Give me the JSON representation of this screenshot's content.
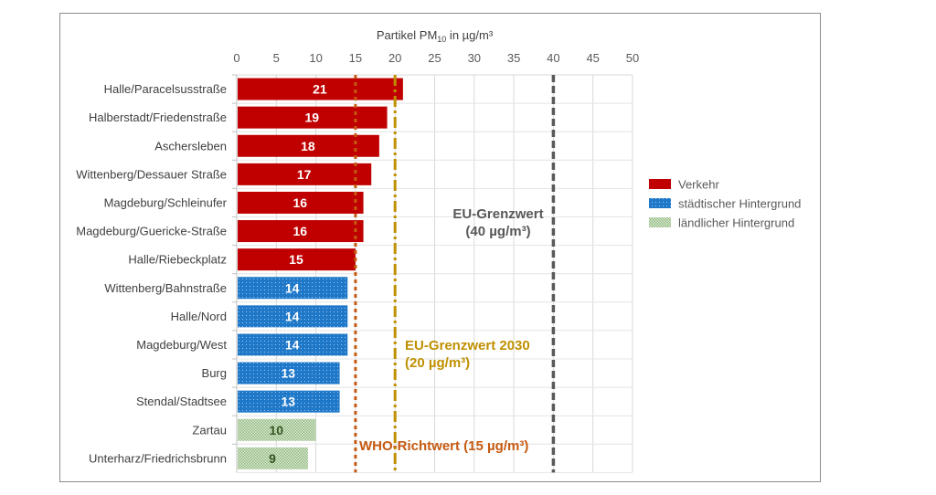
{
  "chart_data": {
    "type": "bar",
    "orientation": "horizontal",
    "title_parts": [
      "Partikel PM",
      "10",
      " in µg/m³"
    ],
    "xlim": [
      0,
      50
    ],
    "xticks": [
      0,
      5,
      10,
      15,
      20,
      25,
      30,
      35,
      40,
      45,
      50
    ],
    "grid": true,
    "legend_position": "right",
    "categories": [
      "Halle/Paracelsusstraße",
      "Halberstadt/Friedenstraße",
      "Aschersleben",
      "Wittenberg/Dessauer Straße",
      "Magdeburg/Schleinufer",
      "Magdeburg/Guericke-Straße",
      "Halle/Riebeckplatz",
      "Wittenberg/Bahnstraße",
      "Halle/Nord",
      "Magdeburg/West",
      "Burg",
      "Stendal/Stadtsee",
      "Zartau",
      "Unterharz/Friedrichsbrunn"
    ],
    "values": [
      21,
      19,
      18,
      17,
      16,
      16,
      15,
      14,
      14,
      14,
      13,
      13,
      10,
      9
    ],
    "groups": [
      0,
      0,
      0,
      0,
      0,
      0,
      0,
      1,
      1,
      1,
      1,
      1,
      2,
      2
    ],
    "series": [
      {
        "name": "Verkehr",
        "color": "#c00000"
      },
      {
        "name": "städtischer Hintergrund",
        "color": "#1f78c8"
      },
      {
        "name": "ländlicher Hintergrund",
        "color": "#a9c99a"
      }
    ],
    "reference_lines": [
      {
        "value": 40,
        "label": [
          "EU-Grenzwert",
          "(40 µg/m³)"
        ],
        "color": "#595959",
        "style": "dashed"
      },
      {
        "value": 20,
        "label": [
          "EU-Grenzwert 2030",
          "(20 µg/m³)"
        ],
        "color": "#bf9000",
        "style": "dashdot"
      },
      {
        "value": 15,
        "label": [
          "WHO-Richtwert (15 µg/m³)"
        ],
        "color": "#c55a11",
        "style": "dotted"
      }
    ]
  }
}
